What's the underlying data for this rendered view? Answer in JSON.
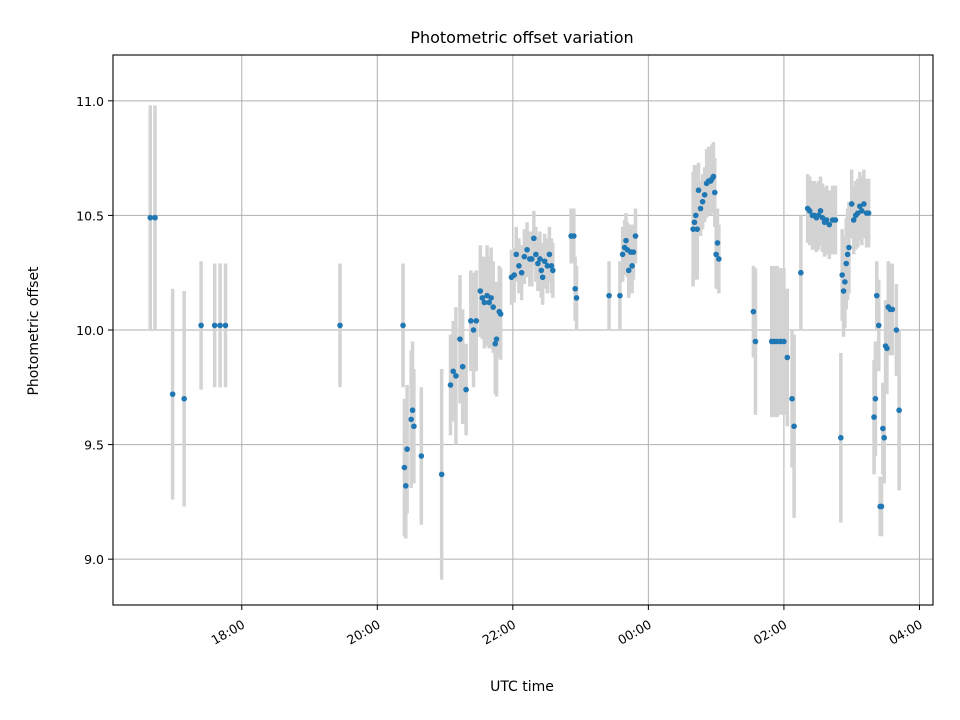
{
  "chart_data": {
    "type": "scatter",
    "title": "Photometric offset variation",
    "xlabel": "UTC time",
    "ylabel": "Photometric offset",
    "x_unit": "UTC time (hours; values after 24 wrap past midnight)",
    "xlim": [
      16.1,
      28.2
    ],
    "ylim": [
      8.8,
      11.2
    ],
    "x_ticks": [
      {
        "value": 18,
        "label": "18:00"
      },
      {
        "value": 20,
        "label": "20:00"
      },
      {
        "value": 22,
        "label": "22:00"
      },
      {
        "value": 24,
        "label": "00:00"
      },
      {
        "value": 26,
        "label": "02:00"
      },
      {
        "value": 28,
        "label": "04:00"
      }
    ],
    "y_ticks": [
      {
        "value": 9.0,
        "label": "9.0"
      },
      {
        "value": 9.5,
        "label": "9.5"
      },
      {
        "value": 10.0,
        "label": "10.0"
      },
      {
        "value": 10.5,
        "label": "10.5"
      },
      {
        "value": 11.0,
        "label": "11.0"
      }
    ],
    "grid": true,
    "colors": {
      "point": "#1f77b4",
      "errorbar": "#d3d3d3",
      "grid": "#b0b0b0"
    },
    "series": [
      {
        "points": [
          {
            "x": 16.65,
            "y": 10.49,
            "err": 0.49
          },
          {
            "x": 16.72,
            "y": 10.49,
            "err": 0.49
          },
          {
            "x": 16.98,
            "y": 9.72,
            "err": 0.46
          },
          {
            "x": 17.15,
            "y": 9.7,
            "err": 0.47
          },
          {
            "x": 17.4,
            "y": 10.02,
            "err": 0.28
          },
          {
            "x": 17.6,
            "y": 10.02,
            "err": 0.27
          },
          {
            "x": 17.68,
            "y": 10.02,
            "err": 0.27
          },
          {
            "x": 17.76,
            "y": 10.02,
            "err": 0.27
          },
          {
            "x": 19.45,
            "y": 10.02,
            "err": 0.27
          },
          {
            "x": 20.38,
            "y": 10.02,
            "err": 0.27
          },
          {
            "x": 20.4,
            "y": 9.4,
            "err": 0.3
          },
          {
            "x": 20.42,
            "y": 9.32,
            "err": 0.23
          },
          {
            "x": 20.44,
            "y": 9.48,
            "err": 0.28
          },
          {
            "x": 20.5,
            "y": 9.61,
            "err": 0.3
          },
          {
            "x": 20.52,
            "y": 9.65,
            "err": 0.3
          },
          {
            "x": 20.54,
            "y": 9.58,
            "err": 0.25
          },
          {
            "x": 20.65,
            "y": 9.45,
            "err": 0.3
          },
          {
            "x": 20.95,
            "y": 9.37,
            "err": 0.46
          },
          {
            "x": 21.08,
            "y": 9.76,
            "err": 0.22
          },
          {
            "x": 21.12,
            "y": 9.82,
            "err": 0.22
          },
          {
            "x": 21.16,
            "y": 9.8,
            "err": 0.3
          },
          {
            "x": 21.22,
            "y": 9.96,
            "err": 0.28
          },
          {
            "x": 21.26,
            "y": 9.84,
            "err": 0.25
          },
          {
            "x": 21.31,
            "y": 9.74,
            "err": 0.2
          },
          {
            "x": 21.38,
            "y": 10.04,
            "err": 0.22
          },
          {
            "x": 21.42,
            "y": 10.0,
            "err": 0.25
          },
          {
            "x": 21.46,
            "y": 10.04,
            "err": 0.22
          },
          {
            "x": 21.52,
            "y": 10.17,
            "err": 0.2
          },
          {
            "x": 21.55,
            "y": 10.14,
            "err": 0.18
          },
          {
            "x": 21.58,
            "y": 10.12,
            "err": 0.2
          },
          {
            "x": 21.62,
            "y": 10.15,
            "err": 0.22
          },
          {
            "x": 21.65,
            "y": 10.12,
            "err": 0.2
          },
          {
            "x": 21.68,
            "y": 10.14,
            "err": 0.22
          },
          {
            "x": 21.71,
            "y": 10.1,
            "err": 0.2
          },
          {
            "x": 21.74,
            "y": 9.94,
            "err": 0.22
          },
          {
            "x": 21.76,
            "y": 9.96,
            "err": 0.25
          },
          {
            "x": 21.8,
            "y": 10.08,
            "err": 0.2
          },
          {
            "x": 21.82,
            "y": 10.07,
            "err": 0.2
          },
          {
            "x": 21.98,
            "y": 10.23,
            "err": 0.12
          },
          {
            "x": 22.02,
            "y": 10.24,
            "err": 0.12
          },
          {
            "x": 22.05,
            "y": 10.33,
            "err": 0.12
          },
          {
            "x": 22.09,
            "y": 10.28,
            "err": 0.12
          },
          {
            "x": 22.13,
            "y": 10.25,
            "err": 0.12
          },
          {
            "x": 22.17,
            "y": 10.32,
            "err": 0.12
          },
          {
            "x": 22.21,
            "y": 10.35,
            "err": 0.12
          },
          {
            "x": 22.25,
            "y": 10.31,
            "err": 0.12
          },
          {
            "x": 22.28,
            "y": 10.31,
            "err": 0.12
          },
          {
            "x": 22.31,
            "y": 10.4,
            "err": 0.12
          },
          {
            "x": 22.34,
            "y": 10.33,
            "err": 0.12
          },
          {
            "x": 22.37,
            "y": 10.29,
            "err": 0.12
          },
          {
            "x": 22.4,
            "y": 10.31,
            "err": 0.12
          },
          {
            "x": 22.42,
            "y": 10.26,
            "err": 0.12
          },
          {
            "x": 22.44,
            "y": 10.23,
            "err": 0.12
          },
          {
            "x": 22.47,
            "y": 10.3,
            "err": 0.12
          },
          {
            "x": 22.51,
            "y": 10.28,
            "err": 0.12
          },
          {
            "x": 22.54,
            "y": 10.33,
            "err": 0.12
          },
          {
            "x": 22.57,
            "y": 10.28,
            "err": 0.12
          },
          {
            "x": 22.59,
            "y": 10.26,
            "err": 0.12
          },
          {
            "x": 22.86,
            "y": 10.41,
            "err": 0.12
          },
          {
            "x": 22.9,
            "y": 10.41,
            "err": 0.12
          },
          {
            "x": 22.92,
            "y": 10.18,
            "err": 0.14
          },
          {
            "x": 22.94,
            "y": 10.14,
            "err": 0.14
          },
          {
            "x": 23.42,
            "y": 10.15,
            "err": 0.15
          },
          {
            "x": 23.58,
            "y": 10.15,
            "err": 0.15
          },
          {
            "x": 23.62,
            "y": 10.33,
            "err": 0.12
          },
          {
            "x": 23.65,
            "y": 10.36,
            "err": 0.12
          },
          {
            "x": 23.67,
            "y": 10.39,
            "err": 0.12
          },
          {
            "x": 23.69,
            "y": 10.35,
            "err": 0.12
          },
          {
            "x": 23.71,
            "y": 10.26,
            "err": 0.12
          },
          {
            "x": 23.74,
            "y": 10.34,
            "err": 0.12
          },
          {
            "x": 23.76,
            "y": 10.28,
            "err": 0.12
          },
          {
            "x": 23.78,
            "y": 10.34,
            "err": 0.12
          },
          {
            "x": 23.81,
            "y": 10.41,
            "err": 0.12
          },
          {
            "x": 24.66,
            "y": 10.44,
            "err": 0.25
          },
          {
            "x": 24.68,
            "y": 10.47,
            "err": 0.25
          },
          {
            "x": 24.7,
            "y": 10.5,
            "err": 0.22
          },
          {
            "x": 24.72,
            "y": 10.44,
            "err": 0.22
          },
          {
            "x": 24.74,
            "y": 10.61,
            "err": 0.12
          },
          {
            "x": 24.77,
            "y": 10.53,
            "err": 0.12
          },
          {
            "x": 24.8,
            "y": 10.56,
            "err": 0.12
          },
          {
            "x": 24.83,
            "y": 10.59,
            "err": 0.12
          },
          {
            "x": 24.86,
            "y": 10.64,
            "err": 0.15
          },
          {
            "x": 24.89,
            "y": 10.65,
            "err": 0.15
          },
          {
            "x": 24.92,
            "y": 10.65,
            "err": 0.15
          },
          {
            "x": 24.94,
            "y": 10.66,
            "err": 0.15
          },
          {
            "x": 24.96,
            "y": 10.67,
            "err": 0.15
          },
          {
            "x": 24.98,
            "y": 10.6,
            "err": 0.15
          },
          {
            "x": 25.0,
            "y": 10.33,
            "err": 0.15
          },
          {
            "x": 25.02,
            "y": 10.38,
            "err": 0.15
          },
          {
            "x": 25.04,
            "y": 10.31,
            "err": 0.15
          },
          {
            "x": 25.55,
            "y": 10.08,
            "err": 0.2
          },
          {
            "x": 25.58,
            "y": 9.95,
            "err": 0.32
          },
          {
            "x": 25.82,
            "y": 9.95,
            "err": 0.33
          },
          {
            "x": 25.86,
            "y": 9.95,
            "err": 0.33
          },
          {
            "x": 25.9,
            "y": 9.95,
            "err": 0.33
          },
          {
            "x": 25.95,
            "y": 9.95,
            "err": 0.32
          },
          {
            "x": 26.0,
            "y": 9.95,
            "err": 0.32
          },
          {
            "x": 26.05,
            "y": 9.88,
            "err": 0.3
          },
          {
            "x": 26.12,
            "y": 9.7,
            "err": 0.3
          },
          {
            "x": 26.15,
            "y": 9.58,
            "err": 0.4
          },
          {
            "x": 26.25,
            "y": 10.25,
            "err": 0.25
          },
          {
            "x": 26.35,
            "y": 10.53,
            "err": 0.15
          },
          {
            "x": 26.38,
            "y": 10.52,
            "err": 0.15
          },
          {
            "x": 26.42,
            "y": 10.5,
            "err": 0.15
          },
          {
            "x": 26.45,
            "y": 10.5,
            "err": 0.15
          },
          {
            "x": 26.48,
            "y": 10.49,
            "err": 0.15
          },
          {
            "x": 26.51,
            "y": 10.5,
            "err": 0.15
          },
          {
            "x": 26.54,
            "y": 10.52,
            "err": 0.15
          },
          {
            "x": 26.57,
            "y": 10.49,
            "err": 0.15
          },
          {
            "x": 26.6,
            "y": 10.47,
            "err": 0.15
          },
          {
            "x": 26.63,
            "y": 10.48,
            "err": 0.15
          },
          {
            "x": 26.67,
            "y": 10.46,
            "err": 0.15
          },
          {
            "x": 26.72,
            "y": 10.48,
            "err": 0.15
          },
          {
            "x": 26.76,
            "y": 10.48,
            "err": 0.15
          },
          {
            "x": 26.84,
            "y": 9.53,
            "err": 0.37
          },
          {
            "x": 26.86,
            "y": 10.24,
            "err": 0.2
          },
          {
            "x": 26.88,
            "y": 10.17,
            "err": 0.2
          },
          {
            "x": 26.9,
            "y": 10.21,
            "err": 0.2
          },
          {
            "x": 26.92,
            "y": 10.29,
            "err": 0.2
          },
          {
            "x": 26.94,
            "y": 10.33,
            "err": 0.2
          },
          {
            "x": 26.96,
            "y": 10.36,
            "err": 0.2
          },
          {
            "x": 27.0,
            "y": 10.55,
            "err": 0.15
          },
          {
            "x": 27.03,
            "y": 10.48,
            "err": 0.15
          },
          {
            "x": 27.06,
            "y": 10.5,
            "err": 0.15
          },
          {
            "x": 27.09,
            "y": 10.51,
            "err": 0.15
          },
          {
            "x": 27.12,
            "y": 10.54,
            "err": 0.15
          },
          {
            "x": 27.15,
            "y": 10.52,
            "err": 0.15
          },
          {
            "x": 27.18,
            "y": 10.55,
            "err": 0.15
          },
          {
            "x": 27.22,
            "y": 10.51,
            "err": 0.15
          },
          {
            "x": 27.25,
            "y": 10.51,
            "err": 0.15
          },
          {
            "x": 27.33,
            "y": 9.62,
            "err": 0.25
          },
          {
            "x": 27.35,
            "y": 9.7,
            "err": 0.25
          },
          {
            "x": 27.37,
            "y": 10.15,
            "err": 0.15
          },
          {
            "x": 27.4,
            "y": 10.02,
            "err": 0.2
          },
          {
            "x": 27.42,
            "y": 9.23,
            "err": 0.13
          },
          {
            "x": 27.44,
            "y": 9.23,
            "err": 0.13
          },
          {
            "x": 27.46,
            "y": 9.57,
            "err": 0.2
          },
          {
            "x": 27.48,
            "y": 9.53,
            "err": 0.2
          },
          {
            "x": 27.5,
            "y": 9.93,
            "err": 0.2
          },
          {
            "x": 27.52,
            "y": 9.92,
            "err": 0.2
          },
          {
            "x": 27.54,
            "y": 10.1,
            "err": 0.2
          },
          {
            "x": 27.57,
            "y": 10.09,
            "err": 0.2
          },
          {
            "x": 27.6,
            "y": 10.09,
            "err": 0.2
          },
          {
            "x": 27.66,
            "y": 10.0,
            "err": 0.2
          },
          {
            "x": 27.7,
            "y": 9.65,
            "err": 0.35
          }
        ]
      }
    ]
  }
}
